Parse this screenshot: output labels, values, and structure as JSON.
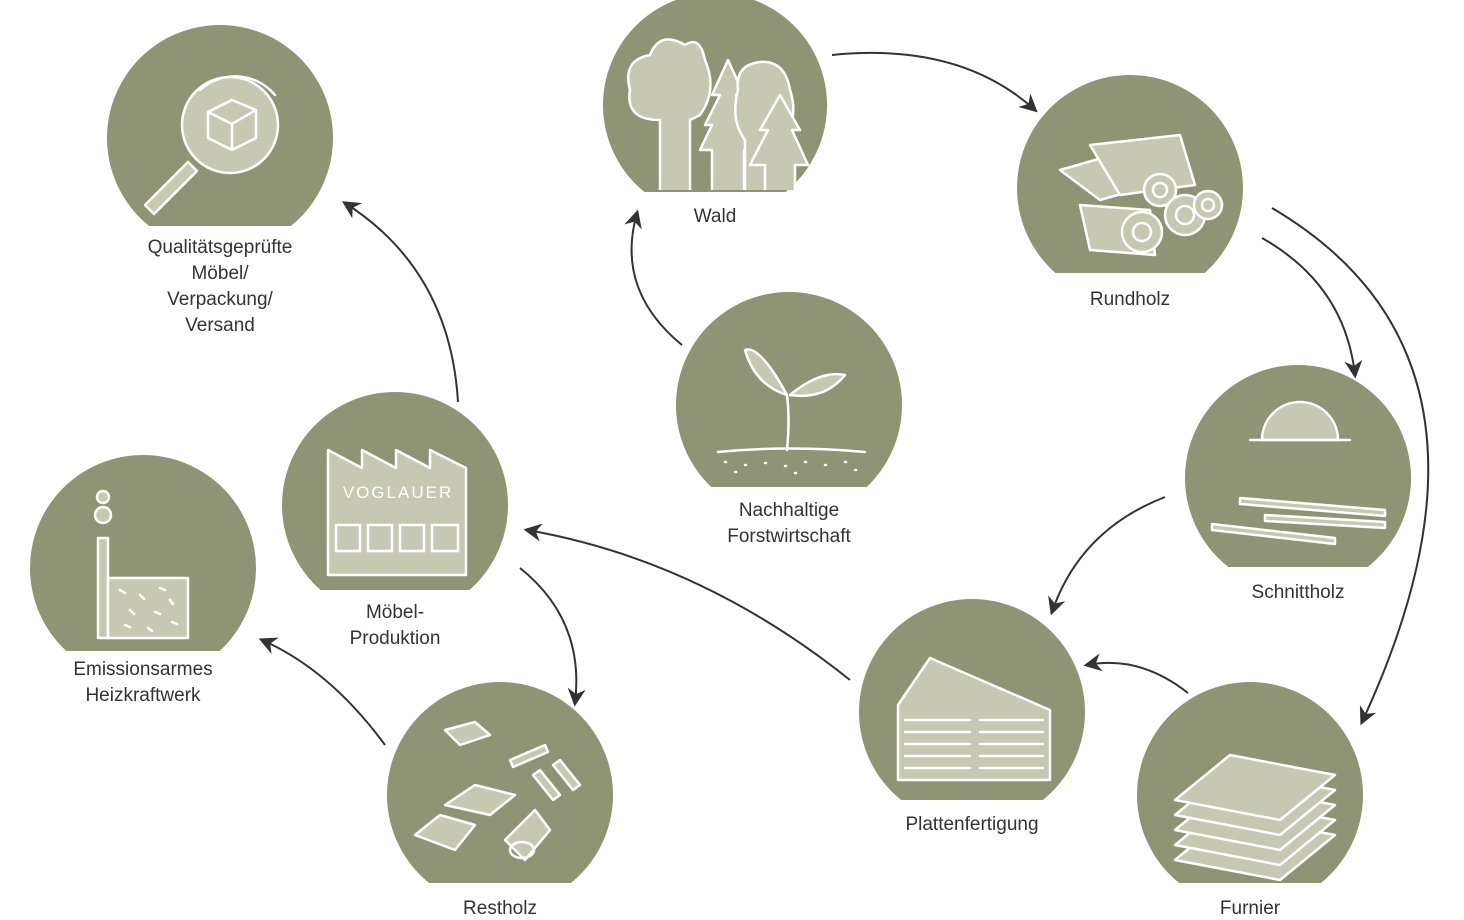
{
  "nodes": [
    {
      "label": [
        "Wald"
      ]
    },
    {
      "label": [
        "Rundholz"
      ]
    },
    {
      "label": [
        "Schnittholz"
      ]
    },
    {
      "label": [
        "Furnier"
      ]
    },
    {
      "label": [
        "Plattenfertigung"
      ]
    },
    {
      "label": [
        "Restholz"
      ]
    },
    {
      "label": [
        "Emissionsarmes",
        "Heizkraftwerk"
      ]
    },
    {
      "label": [
        "Möbel-",
        "Produktion"
      ],
      "sign": "VOGLAUER"
    },
    {
      "label": [
        "Nachhaltige",
        "Forstwirtschaft"
      ]
    },
    {
      "label": [
        "Qualitätsgeprüfte",
        "Möbel/",
        "Verpackung/",
        "Versand"
      ]
    }
  ]
}
